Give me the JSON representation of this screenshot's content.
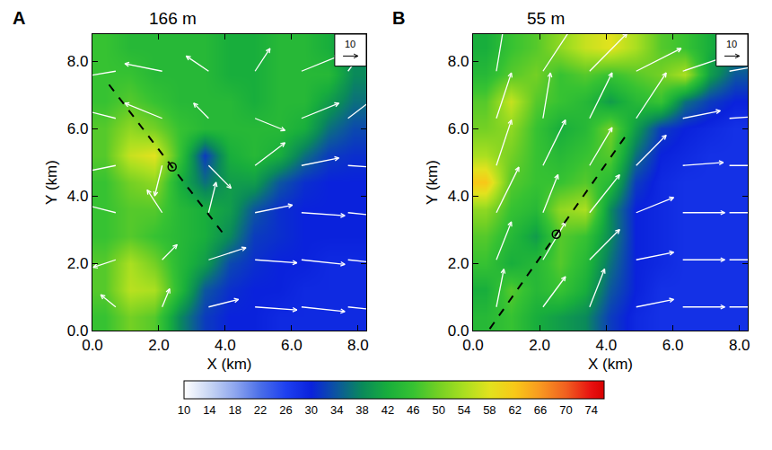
{
  "chart_data": [
    {
      "type": "heatmap",
      "label": "A",
      "title": "166 m",
      "x_label": "X (km)",
      "y_label": "Y (km)",
      "xlim": [
        0,
        8.25
      ],
      "ylim": [
        0,
        8.8
      ],
      "xticks": [
        {
          "value": 0,
          "label": "0.0"
        },
        {
          "value": 2,
          "label": "2.0"
        },
        {
          "value": 4,
          "label": "4.0"
        },
        {
          "value": 6,
          "label": "6.0"
        },
        {
          "value": 8,
          "label": "8.0"
        }
      ],
      "yticks": [
        {
          "value": 0,
          "label": "0.0"
        },
        {
          "value": 2,
          "label": "2.0"
        },
        {
          "value": 4,
          "label": "4.0"
        },
        {
          "value": 6,
          "label": "6.0"
        },
        {
          "value": 8,
          "label": "8.0"
        }
      ],
      "x": [
        0.375,
        1.125,
        1.875,
        2.625,
        3.375,
        4.125,
        4.875,
        5.625,
        6.375,
        7.125,
        7.875
      ],
      "y": [
        0.4,
        1.2,
        2.0,
        2.8,
        3.6,
        4.4,
        5.2,
        6.0,
        6.8,
        7.6,
        8.4
      ],
      "z": [
        [
          46,
          50,
          48,
          38,
          32,
          30,
          30,
          29,
          29,
          29,
          29
        ],
        [
          48,
          55,
          54,
          44,
          34,
          31,
          30,
          30,
          29,
          29,
          29
        ],
        [
          48,
          54,
          50,
          44,
          40,
          33,
          31,
          30,
          30,
          29,
          29
        ],
        [
          46,
          48,
          46,
          44,
          42,
          38,
          32,
          31,
          30,
          30,
          30
        ],
        [
          46,
          48,
          48,
          44,
          42,
          40,
          34,
          31,
          30,
          30,
          30
        ],
        [
          46,
          50,
          52,
          42,
          36,
          40,
          40,
          34,
          31,
          30,
          30
        ],
        [
          48,
          56,
          58,
          46,
          32,
          42,
          44,
          42,
          36,
          32,
          31
        ],
        [
          48,
          52,
          50,
          46,
          44,
          44,
          44,
          44,
          42,
          36,
          33
        ],
        [
          46,
          48,
          46,
          44,
          44,
          44,
          42,
          44,
          44,
          40,
          36
        ],
        [
          46,
          46,
          44,
          44,
          44,
          42,
          42,
          44,
          44,
          44,
          38
        ],
        [
          46,
          44,
          44,
          44,
          44,
          42,
          42,
          44,
          44,
          42,
          38
        ]
      ],
      "vectors": {
        "x": [
          0.7,
          2.1,
          3.5,
          4.9,
          6.3,
          7.7
        ],
        "y": [
          0.7,
          2.1,
          3.5,
          4.9,
          6.3,
          7.7
        ],
        "u": [
          [
            -10,
            5,
            20,
            28,
            29,
            29
          ],
          [
            -15,
            10,
            25,
            28,
            29,
            29
          ],
          [
            -20,
            -10,
            5,
            25,
            29,
            29
          ],
          [
            -25,
            -5,
            15,
            20,
            25,
            28
          ],
          [
            -20,
            -25,
            -10,
            20,
            25,
            20
          ],
          [
            -30,
            -25,
            -15,
            10,
            25,
            15
          ]
        ],
        "v": [
          [
            8,
            12,
            5,
            -2,
            -3,
            -3
          ],
          [
            -5,
            10,
            8,
            -2,
            -3,
            -3
          ],
          [
            5,
            15,
            20,
            5,
            -2,
            -3
          ],
          [
            -5,
            -20,
            -15,
            15,
            5,
            -2
          ],
          [
            5,
            10,
            10,
            -8,
            10,
            15
          ],
          [
            -5,
            5,
            10,
            15,
            10,
            20
          ]
        ]
      },
      "ref_vector": 10,
      "section": {
        "x": [
          0.5,
          4.0
        ],
        "y": [
          7.3,
          2.8
        ],
        "center": [
          2.4,
          4.86
        ]
      },
      "line_style": "dashed"
    },
    {
      "type": "heatmap",
      "label": "B",
      "title": "55 m",
      "x_label": "X (km)",
      "y_label": "Y (km)",
      "xlim": [
        0,
        8.25
      ],
      "ylim": [
        0,
        8.8
      ],
      "xticks": [
        {
          "value": 0,
          "label": "0.0"
        },
        {
          "value": 2,
          "label": "2.0"
        },
        {
          "value": 4,
          "label": "4.0"
        },
        {
          "value": 6,
          "label": "6.0"
        },
        {
          "value": 8,
          "label": "8.0"
        }
      ],
      "yticks": [
        {
          "value": 0,
          "label": "0.0"
        },
        {
          "value": 2,
          "label": "2.0"
        },
        {
          "value": 4,
          "label": "4.0"
        },
        {
          "value": 6,
          "label": "6.0"
        },
        {
          "value": 8,
          "label": "8.0"
        }
      ],
      "x": [
        0.375,
        1.125,
        1.875,
        2.625,
        3.375,
        4.125,
        4.875,
        5.625,
        6.375,
        7.125,
        7.875
      ],
      "y": [
        0.4,
        1.2,
        2.0,
        2.8,
        3.6,
        4.4,
        5.2,
        6.0,
        6.8,
        7.6,
        8.4
      ],
      "z": [
        [
          44,
          46,
          42,
          40,
          38,
          32,
          29,
          28,
          28,
          28,
          28
        ],
        [
          42,
          48,
          44,
          46,
          42,
          34,
          30,
          28,
          28,
          28,
          28
        ],
        [
          46,
          42,
          44,
          48,
          44,
          36,
          30,
          29,
          28,
          28,
          28
        ],
        [
          48,
          44,
          40,
          48,
          46,
          38,
          30,
          29,
          28,
          28,
          28
        ],
        [
          52,
          46,
          44,
          52,
          54,
          38,
          30,
          29,
          28,
          28,
          28
        ],
        [
          62,
          48,
          46,
          46,
          48,
          44,
          32,
          29,
          28,
          28,
          28
        ],
        [
          54,
          50,
          46,
          44,
          46,
          48,
          36,
          30,
          29,
          28,
          28
        ],
        [
          50,
          52,
          46,
          42,
          44,
          50,
          40,
          32,
          30,
          29,
          28
        ],
        [
          48,
          56,
          48,
          46,
          44,
          40,
          44,
          46,
          36,
          32,
          30
        ],
        [
          44,
          48,
          50,
          46,
          48,
          46,
          48,
          50,
          54,
          40,
          34
        ],
        [
          42,
          46,
          48,
          52,
          56,
          58,
          54,
          48,
          46,
          42,
          38
        ]
      ],
      "vectors": {
        "x": [
          0.7,
          2.1,
          3.5,
          4.9,
          6.3,
          7.7
        ],
        "y": [
          0.7,
          2.1,
          3.5,
          4.9,
          6.3,
          7.7
        ],
        "u": [
          [
            5,
            15,
            10,
            25,
            28,
            28
          ],
          [
            10,
            15,
            20,
            25,
            28,
            28
          ],
          [
            15,
            10,
            20,
            25,
            28,
            28
          ],
          [
            10,
            15,
            15,
            20,
            27,
            28
          ],
          [
            10,
            5,
            15,
            20,
            25,
            28
          ],
          [
            5,
            20,
            25,
            30,
            30,
            28
          ]
        ],
        "v": [
          [
            25,
            20,
            25,
            5,
            0,
            0
          ],
          [
            25,
            25,
            20,
            5,
            0,
            0
          ],
          [
            30,
            25,
            25,
            10,
            0,
            0
          ],
          [
            30,
            30,
            25,
            20,
            2,
            0
          ],
          [
            30,
            30,
            30,
            30,
            5,
            2
          ],
          [
            30,
            30,
            25,
            15,
            10,
            5
          ]
        ]
      },
      "ref_vector": 10,
      "section": {
        "x": [
          0.5,
          4.6
        ],
        "y": [
          0.05,
          5.8
        ],
        "center": [
          2.5,
          2.86
        ]
      },
      "line_style": "dashed"
    }
  ],
  "colorbar": {
    "lim": [
      10,
      76
    ],
    "ticks": [
      10,
      14,
      18,
      22,
      26,
      30,
      34,
      38,
      42,
      46,
      50,
      54,
      58,
      62,
      66,
      70,
      74
    ]
  }
}
